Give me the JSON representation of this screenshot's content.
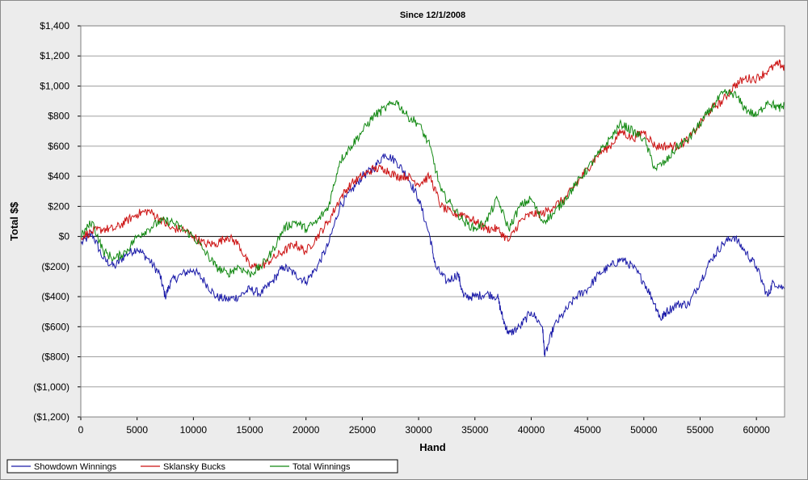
{
  "chart_data": {
    "type": "line",
    "title": "Since 12/1/2008",
    "xlabel": "Hand",
    "ylabel": "Total $$",
    "xlim": [
      0,
      62500
    ],
    "ylim": [
      -1200,
      1400
    ],
    "x_ticks": [
      0,
      5000,
      10000,
      15000,
      20000,
      25000,
      30000,
      35000,
      40000,
      45000,
      50000,
      55000,
      60000
    ],
    "y_ticks": [
      {
        "value": 1400,
        "label": "$1,400"
      },
      {
        "value": 1200,
        "label": "$1,200"
      },
      {
        "value": 1000,
        "label": "$1,000"
      },
      {
        "value": 800,
        "label": "$800"
      },
      {
        "value": 600,
        "label": "$600"
      },
      {
        "value": 400,
        "label": "$400"
      },
      {
        "value": 200,
        "label": "$200"
      },
      {
        "value": 0,
        "label": "$0"
      },
      {
        "value": -200,
        "label": "($200)"
      },
      {
        "value": -400,
        "label": "($400)"
      },
      {
        "value": -600,
        "label": "($600)"
      },
      {
        "value": -800,
        "label": "($800)"
      },
      {
        "value": -1000,
        "label": "($1,000)"
      },
      {
        "value": -1200,
        "label": "($1,200)"
      }
    ],
    "grid": true,
    "legend_position": "bottom-left",
    "series": [
      {
        "name": "Showdown Winnings",
        "color": "#1a1aa8",
        "x": [
          0,
          1000,
          2000,
          3000,
          4000,
          5000,
          6000,
          7000,
          7500,
          8000,
          9000,
          10000,
          11000,
          12000,
          13000,
          14000,
          15000,
          16000,
          17000,
          18000,
          19000,
          20000,
          21000,
          22000,
          23000,
          24000,
          25000,
          26000,
          27000,
          28000,
          29000,
          30000,
          31000,
          31500,
          32500,
          33500,
          34000,
          35000,
          36000,
          37000,
          37500,
          38000,
          39000,
          40000,
          41000,
          41200,
          42000,
          43000,
          44000,
          45000,
          46000,
          47000,
          48000,
          49000,
          50000,
          51000,
          51500,
          52000,
          53000,
          54000,
          55000,
          56000,
          57000,
          58000,
          59000,
          60000,
          61000,
          61500,
          62500
        ],
        "values": [
          -50,
          20,
          -150,
          -200,
          -120,
          -80,
          -150,
          -250,
          -400,
          -300,
          -250,
          -220,
          -300,
          -400,
          -420,
          -400,
          -350,
          -380,
          -300,
          -200,
          -250,
          -300,
          -200,
          -50,
          200,
          300,
          400,
          450,
          550,
          500,
          400,
          250,
          0,
          -200,
          -300,
          -250,
          -400,
          -400,
          -380,
          -400,
          -550,
          -650,
          -600,
          -500,
          -600,
          -800,
          -600,
          -500,
          -400,
          -350,
          -250,
          -200,
          -150,
          -200,
          -300,
          -450,
          -550,
          -500,
          -450,
          -450,
          -300,
          -150,
          -50,
          0,
          -100,
          -200,
          -400,
          -300,
          -350
        ]
      },
      {
        "name": "Sklansky Bucks",
        "color": "#cc1111",
        "x": [
          0,
          1000,
          2000,
          3000,
          4000,
          5000,
          6000,
          7000,
          8000,
          9000,
          10000,
          11000,
          12000,
          13000,
          14000,
          15000,
          16000,
          17000,
          18000,
          19000,
          20000,
          21000,
          22000,
          23000,
          24000,
          25000,
          26000,
          27000,
          28000,
          29000,
          30000,
          31000,
          32000,
          33000,
          34000,
          35000,
          36000,
          37000,
          38000,
          39000,
          40000,
          41000,
          42000,
          43000,
          44000,
          45000,
          46000,
          47000,
          48000,
          49000,
          50000,
          51000,
          52000,
          53000,
          54000,
          55000,
          56000,
          57000,
          58000,
          59000,
          60000,
          61000,
          62000,
          62500
        ],
        "values": [
          0,
          30,
          50,
          50,
          100,
          150,
          170,
          120,
          50,
          50,
          0,
          -50,
          -50,
          0,
          -50,
          -200,
          -200,
          -150,
          -100,
          -50,
          -100,
          0,
          100,
          250,
          350,
          400,
          450,
          450,
          400,
          400,
          350,
          400,
          200,
          150,
          150,
          100,
          50,
          50,
          -30,
          100,
          150,
          150,
          200,
          250,
          350,
          450,
          550,
          600,
          700,
          650,
          700,
          600,
          600,
          600,
          650,
          750,
          850,
          900,
          1000,
          1050,
          1050,
          1100,
          1150,
          1120
        ]
      },
      {
        "name": "Total Winnings",
        "color": "#118811",
        "x": [
          0,
          1000,
          2000,
          3000,
          4000,
          5000,
          6000,
          7000,
          8000,
          9000,
          10000,
          11000,
          12000,
          13000,
          14000,
          15000,
          16000,
          17000,
          18000,
          19000,
          20000,
          21000,
          22000,
          23000,
          24000,
          25000,
          26000,
          27000,
          28000,
          29000,
          30000,
          31000,
          32000,
          33000,
          34000,
          35000,
          36000,
          37000,
          38000,
          39000,
          40000,
          41000,
          42000,
          43000,
          44000,
          45000,
          46000,
          47000,
          48000,
          49000,
          50000,
          51000,
          52000,
          53000,
          54000,
          55000,
          56000,
          57000,
          58000,
          59000,
          60000,
          61000,
          62000,
          62500
        ],
        "values": [
          0,
          100,
          -100,
          -150,
          -100,
          0,
          50,
          100,
          100,
          50,
          0,
          -100,
          -200,
          -250,
          -200,
          -250,
          -200,
          -100,
          50,
          100,
          50,
          100,
          200,
          500,
          600,
          700,
          800,
          850,
          900,
          800,
          750,
          600,
          300,
          200,
          100,
          50,
          100,
          250,
          50,
          200,
          250,
          100,
          150,
          250,
          350,
          450,
          550,
          650,
          750,
          700,
          650,
          450,
          500,
          600,
          650,
          750,
          850,
          950,
          950,
          850,
          800,
          900,
          850,
          870
        ]
      }
    ]
  }
}
